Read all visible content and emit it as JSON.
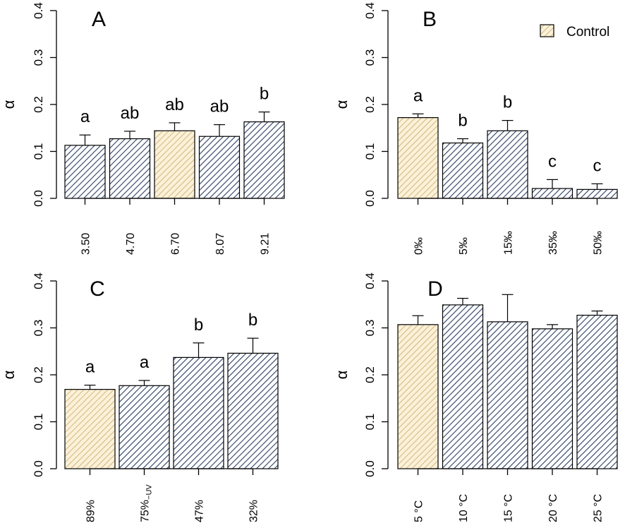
{
  "colors": {
    "bar_hatch": "#2b3f63",
    "control_hatch": "#c9a86a",
    "control_bg": "#fbf1d8",
    "bar_bg": "#ffffff"
  },
  "legend": {
    "label": "Control"
  },
  "chart_data": [
    {
      "type": "bar",
      "panel_label": "A",
      "ylabel": "α",
      "ylim": [
        0,
        0.4
      ],
      "yticks": [
        "0.0",
        "0.1",
        "0.2",
        "0.3",
        "0.4"
      ],
      "categories": [
        "3.50",
        "4.70",
        "6.70",
        "8.07",
        "9.21"
      ],
      "values": [
        0.113,
        0.127,
        0.144,
        0.132,
        0.163
      ],
      "errors": [
        0.022,
        0.016,
        0.017,
        0.025,
        0.021
      ],
      "letters": [
        "a",
        "ab",
        "ab",
        "ab",
        "b"
      ],
      "control_index": 2
    },
    {
      "type": "bar",
      "panel_label": "B",
      "ylabel": "α",
      "ylim": [
        0,
        0.4
      ],
      "yticks": [
        "0.0",
        "0.1",
        "0.2",
        "0.3",
        "0.4"
      ],
      "categories": [
        "0‰",
        "5‰",
        "15‰",
        "35‰",
        "50‰"
      ],
      "values": [
        0.172,
        0.118,
        0.144,
        0.021,
        0.019
      ],
      "errors": [
        0.008,
        0.009,
        0.022,
        0.019,
        0.012
      ],
      "letters": [
        "a",
        "b",
        "b",
        "c",
        "c"
      ],
      "control_index": 0
    },
    {
      "type": "bar",
      "panel_label": "C",
      "ylabel": "α",
      "ylim": [
        0,
        0.4
      ],
      "yticks": [
        "0.0",
        "0.1",
        "0.2",
        "0.3",
        "0.4"
      ],
      "categories": [
        "89%",
        "75%",
        "47%",
        "32%"
      ],
      "category_subscripts": [
        "",
        "−UV",
        "",
        ""
      ],
      "values": [
        0.169,
        0.177,
        0.237,
        0.246
      ],
      "errors": [
        0.009,
        0.011,
        0.031,
        0.032
      ],
      "letters": [
        "a",
        "a",
        "b",
        "b"
      ],
      "control_index": 0
    },
    {
      "type": "bar",
      "panel_label": "D",
      "ylabel": "α",
      "ylim": [
        0,
        0.4
      ],
      "yticks": [
        "0.0",
        "0.1",
        "0.2",
        "0.3",
        "0.4"
      ],
      "categories": [
        "5 °C",
        "10 °C",
        "15 °C",
        "20 °C",
        "25 °C"
      ],
      "values": [
        0.307,
        0.349,
        0.313,
        0.298,
        0.327
      ],
      "errors": [
        0.019,
        0.014,
        0.058,
        0.009,
        0.009
      ],
      "letters": [
        "",
        "",
        "",
        "",
        ""
      ],
      "control_index": 0
    }
  ]
}
